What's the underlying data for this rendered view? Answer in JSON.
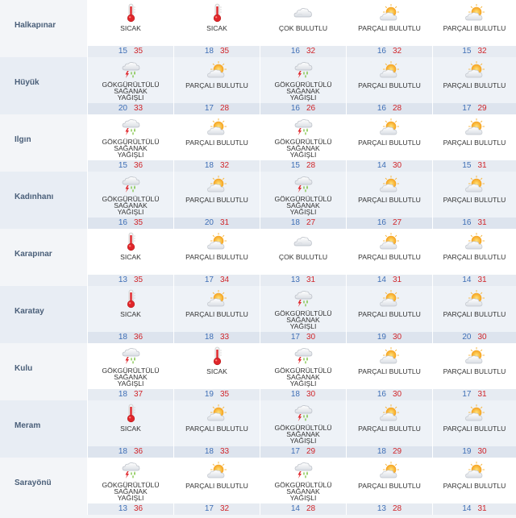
{
  "rows": [
    {
      "city": "Halkapınar",
      "days": [
        {
          "icon": "thermometer-icon",
          "desc": "SICAK",
          "lo": "15",
          "hi": "35"
        },
        {
          "icon": "thermometer-icon",
          "desc": "SICAK",
          "lo": "18",
          "hi": "35"
        },
        {
          "icon": "cloud-icon",
          "desc": "ÇOK BULUTLU",
          "lo": "16",
          "hi": "32"
        },
        {
          "icon": "partly-cloudy-icon",
          "desc": "PARÇALI BULUTLU",
          "lo": "16",
          "hi": "32"
        },
        {
          "icon": "partly-cloudy-icon",
          "desc": "PARÇALI BULUTLU",
          "lo": "15",
          "hi": "32"
        }
      ]
    },
    {
      "city": "Hüyük",
      "days": [
        {
          "icon": "thunderstorm-icon",
          "desc": "GÖKGÜRÜLTÜLÜ SAĞANAK YAĞIŞLI",
          "lo": "20",
          "hi": "33"
        },
        {
          "icon": "partly-cloudy-icon",
          "desc": "PARÇALI BULUTLU",
          "lo": "17",
          "hi": "28"
        },
        {
          "icon": "thunderstorm-icon",
          "desc": "GÖKGÜRÜLTÜLÜ SAĞANAK YAĞIŞLI",
          "lo": "16",
          "hi": "26"
        },
        {
          "icon": "partly-cloudy-icon",
          "desc": "PARÇALI BULUTLU",
          "lo": "16",
          "hi": "28"
        },
        {
          "icon": "partly-cloudy-icon",
          "desc": "PARÇALI BULUTLU",
          "lo": "17",
          "hi": "29"
        }
      ]
    },
    {
      "city": "Ilgın",
      "days": [
        {
          "icon": "thunderstorm-icon",
          "desc": "GÖKGÜRÜLTÜLÜ SAĞANAK YAĞIŞLI",
          "lo": "15",
          "hi": "36"
        },
        {
          "icon": "partly-cloudy-icon",
          "desc": "PARÇALI BULUTLU",
          "lo": "18",
          "hi": "32"
        },
        {
          "icon": "thunderstorm-icon",
          "desc": "GÖKGÜRÜLTÜLÜ SAĞANAK YAĞIŞLI",
          "lo": "15",
          "hi": "28"
        },
        {
          "icon": "partly-cloudy-icon",
          "desc": "PARÇALI BULUTLU",
          "lo": "14",
          "hi": "30"
        },
        {
          "icon": "partly-cloudy-icon",
          "desc": "PARÇALI BULUTLU",
          "lo": "15",
          "hi": "31"
        }
      ]
    },
    {
      "city": "Kadınhanı",
      "days": [
        {
          "icon": "thunderstorm-icon",
          "desc": "GÖKGÜRÜLTÜLÜ SAĞANAK YAĞIŞLI",
          "lo": "16",
          "hi": "35"
        },
        {
          "icon": "partly-cloudy-icon",
          "desc": "PARÇALI BULUTLU",
          "lo": "20",
          "hi": "31"
        },
        {
          "icon": "thunderstorm-icon",
          "desc": "GÖKGÜRÜLTÜLÜ SAĞANAK YAĞIŞLI",
          "lo": "18",
          "hi": "27"
        },
        {
          "icon": "partly-cloudy-icon",
          "desc": "PARÇALI BULUTLU",
          "lo": "16",
          "hi": "27"
        },
        {
          "icon": "partly-cloudy-icon",
          "desc": "PARÇALI BULUTLU",
          "lo": "16",
          "hi": "31"
        }
      ]
    },
    {
      "city": "Karapınar",
      "days": [
        {
          "icon": "thermometer-icon",
          "desc": "SICAK",
          "lo": "13",
          "hi": "35"
        },
        {
          "icon": "partly-cloudy-icon",
          "desc": "PARÇALI BULUTLU",
          "lo": "17",
          "hi": "34"
        },
        {
          "icon": "cloud-icon",
          "desc": "ÇOK BULUTLU",
          "lo": "13",
          "hi": "31"
        },
        {
          "icon": "partly-cloudy-icon",
          "desc": "PARÇALI BULUTLU",
          "lo": "14",
          "hi": "31"
        },
        {
          "icon": "partly-cloudy-icon",
          "desc": "PARÇALI BULUTLU",
          "lo": "14",
          "hi": "31"
        }
      ]
    },
    {
      "city": "Karatay",
      "days": [
        {
          "icon": "thermometer-icon",
          "desc": "SICAK",
          "lo": "18",
          "hi": "36"
        },
        {
          "icon": "partly-cloudy-icon",
          "desc": "PARÇALI BULUTLU",
          "lo": "18",
          "hi": "33"
        },
        {
          "icon": "thunderstorm-icon",
          "desc": "GÖKGÜRÜLTÜLÜ SAĞANAK YAĞIŞLI",
          "lo": "17",
          "hi": "30"
        },
        {
          "icon": "partly-cloudy-icon",
          "desc": "PARÇALI BULUTLU",
          "lo": "19",
          "hi": "30"
        },
        {
          "icon": "partly-cloudy-icon",
          "desc": "PARÇALI BULUTLU",
          "lo": "20",
          "hi": "30"
        }
      ]
    },
    {
      "city": "Kulu",
      "days": [
        {
          "icon": "thunderstorm-icon",
          "desc": "GÖKGÜRÜLTÜLÜ SAĞANAK YAĞIŞLI",
          "lo": "18",
          "hi": "37"
        },
        {
          "icon": "thermometer-icon",
          "desc": "SICAK",
          "lo": "19",
          "hi": "35"
        },
        {
          "icon": "thunderstorm-icon",
          "desc": "GÖKGÜRÜLTÜLÜ SAĞANAK YAĞIŞLI",
          "lo": "18",
          "hi": "30"
        },
        {
          "icon": "partly-cloudy-icon",
          "desc": "PARÇALI BULUTLU",
          "lo": "16",
          "hi": "30"
        },
        {
          "icon": "partly-cloudy-icon",
          "desc": "PARÇALI BULUTLU",
          "lo": "17",
          "hi": "31"
        }
      ]
    },
    {
      "city": "Meram",
      "days": [
        {
          "icon": "thermometer-icon",
          "desc": "SICAK",
          "lo": "18",
          "hi": "36"
        },
        {
          "icon": "partly-cloudy-icon",
          "desc": "PARÇALI BULUTLU",
          "lo": "18",
          "hi": "33"
        },
        {
          "icon": "thunderstorm-icon",
          "desc": "GÖKGÜRÜLTÜLÜ SAĞANAK YAĞIŞLI",
          "lo": "17",
          "hi": "29"
        },
        {
          "icon": "partly-cloudy-icon",
          "desc": "PARÇALI BULUTLU",
          "lo": "18",
          "hi": "29"
        },
        {
          "icon": "partly-cloudy-icon",
          "desc": "PARÇALI BULUTLU",
          "lo": "19",
          "hi": "30"
        }
      ]
    },
    {
      "city": "Sarayönü",
      "days": [
        {
          "icon": "thunderstorm-icon",
          "desc": "GÖKGÜRÜLTÜLÜ SAĞANAK YAĞIŞLI",
          "lo": "13",
          "hi": "36"
        },
        {
          "icon": "partly-cloudy-icon",
          "desc": "PARÇALI BULUTLU",
          "lo": "17",
          "hi": "32"
        },
        {
          "icon": "thunderstorm-icon",
          "desc": "GÖKGÜRÜLTÜLÜ SAĞANAK YAĞIŞLI",
          "lo": "14",
          "hi": "28"
        },
        {
          "icon": "partly-cloudy-icon",
          "desc": "PARÇALI BULUTLU",
          "lo": "13",
          "hi": "28"
        },
        {
          "icon": "partly-cloudy-icon",
          "desc": "PARÇALI BULUTLU",
          "lo": "14",
          "hi": "31"
        }
      ]
    }
  ],
  "colors": {
    "low_temp": "#3f6fb6",
    "high_temp": "#d0252a",
    "city_text": "#4a5f79",
    "row_alt_bg": "#eef2f7"
  }
}
